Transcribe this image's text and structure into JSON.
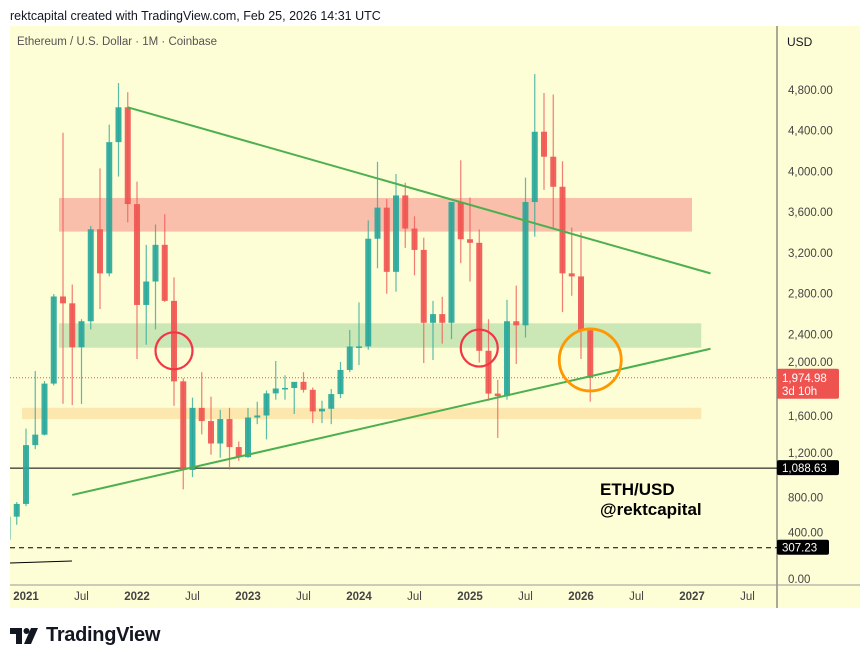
{
  "caption": "rektcapital created with TradingView.com, Feb 25, 2026 14:31 UTC",
  "symbol_line": "Ethereum / U.S. Dollar · 1M · Coinbase",
  "currency": "USD",
  "watermark": {
    "line1": "ETH/USD",
    "line2": "@rektcapital"
  },
  "logo_text": "TradingView",
  "colors": {
    "background": "#fdfdd6",
    "up": "#26a69a",
    "down": "#ef5350",
    "trendline": "#4caf50",
    "resistance_zone": "#f9b4a2",
    "support_zone": "#c3e3b0",
    "orange_zone": "#fbe3a8",
    "orange_circle": "#ff9800",
    "red_circle": "#f23645"
  },
  "chart_data": {
    "type": "candlestick",
    "title": "Ethereum / U.S. Dollar · 1M · Coinbase",
    "ylim": [
      0,
      5000
    ],
    "y_ticks": [
      "0.00",
      "400.00",
      "800.00",
      "1,200.00",
      "1,600.00",
      "2,000.00",
      "2,400.00",
      "2,800.00",
      "3,200.00",
      "3,600.00",
      "4,000.00",
      "4,400.00",
      "4,800.00"
    ],
    "x_ticks": [
      "2021",
      "Jul",
      "2022",
      "Jul",
      "2023",
      "Jul",
      "2024",
      "Jul",
      "2025",
      "Jul",
      "2026",
      "Jul",
      "2027",
      "Jul"
    ],
    "candles": [
      [
        "2020-11",
        386,
        622,
        374,
        612
      ],
      [
        "2020-12",
        612,
        755,
        532,
        737
      ],
      [
        "2021-01",
        737,
        1476,
        715,
        1314
      ],
      [
        "2021-02",
        1314,
        2041,
        1274,
        1417
      ],
      [
        "2021-03",
        1417,
        1943,
        1410,
        1918
      ],
      [
        "2021-04",
        1918,
        2797,
        1900,
        2773
      ],
      [
        "2021-05",
        2773,
        4380,
        1720,
        2706
      ],
      [
        "2021-06",
        2706,
        2890,
        1707,
        2275
      ],
      [
        "2021-07",
        2275,
        2550,
        1718,
        2530
      ],
      [
        "2021-08",
        2530,
        3466,
        2450,
        3433
      ],
      [
        "2021-09",
        3433,
        4030,
        2650,
        3000
      ],
      [
        "2021-10",
        3000,
        4460,
        2970,
        4288
      ],
      [
        "2021-11",
        4288,
        4868,
        3950,
        4630
      ],
      [
        "2021-12",
        4630,
        4778,
        3500,
        3680
      ],
      [
        "2022-01",
        3680,
        3900,
        2160,
        2690
      ],
      [
        "2022-02",
        2690,
        3280,
        2300,
        2920
      ],
      [
        "2022-03",
        2920,
        3480,
        2450,
        3280
      ],
      [
        "2022-04",
        3280,
        3580,
        2720,
        2730
      ],
      [
        "2022-05",
        2730,
        2960,
        1700,
        1940
      ],
      [
        "2022-06",
        1940,
        1970,
        880,
        1070
      ],
      [
        "2022-07",
        1070,
        1780,
        1000,
        1680
      ],
      [
        "2022-08",
        1680,
        2030,
        1420,
        1550
      ],
      [
        "2022-09",
        1550,
        1790,
        1220,
        1330
      ],
      [
        "2022-10",
        1330,
        1660,
        1190,
        1570
      ],
      [
        "2022-11",
        1570,
        1680,
        1075,
        1295
      ],
      [
        "2022-12",
        1295,
        1350,
        1160,
        1196
      ],
      [
        "2023-01",
        1196,
        1680,
        1190,
        1585
      ],
      [
        "2023-02",
        1585,
        1740,
        1520,
        1605
      ],
      [
        "2023-03",
        1605,
        1850,
        1370,
        1822
      ],
      [
        "2023-04",
        1822,
        2140,
        1760,
        1870
      ],
      [
        "2023-05",
        1870,
        2000,
        1760,
        1875
      ],
      [
        "2023-06",
        1875,
        1930,
        1620,
        1935
      ],
      [
        "2023-07",
        1935,
        2030,
        1830,
        1857
      ],
      [
        "2023-08",
        1857,
        1880,
        1530,
        1645
      ],
      [
        "2023-09",
        1645,
        1750,
        1530,
        1671
      ],
      [
        "2023-10",
        1671,
        1865,
        1520,
        1815
      ],
      [
        "2023-11",
        1815,
        2130,
        1775,
        2052
      ],
      [
        "2023-12",
        2052,
        2445,
        2030,
        2282
      ],
      [
        "2024-01",
        2282,
        2715,
        2100,
        2283
      ],
      [
        "2024-02",
        2283,
        3520,
        2250,
        3340
      ],
      [
        "2024-03",
        3340,
        4095,
        3050,
        3645
      ],
      [
        "2024-04",
        3645,
        3730,
        2800,
        3015
      ],
      [
        "2024-05",
        3015,
        3975,
        2820,
        3765
      ],
      [
        "2024-06",
        3765,
        3890,
        3250,
        3440
      ],
      [
        "2024-07",
        3440,
        3560,
        2980,
        3230
      ],
      [
        "2024-08",
        3230,
        3350,
        2120,
        2515
      ],
      [
        "2024-09",
        2515,
        2730,
        2150,
        2600
      ],
      [
        "2024-10",
        2600,
        2770,
        2310,
        2515
      ],
      [
        "2024-11",
        2515,
        3680,
        2355,
        3700
      ],
      [
        "2024-12",
        3700,
        4110,
        3100,
        3335
      ],
      [
        "2025-01",
        3335,
        3745,
        2920,
        3300
      ],
      [
        "2025-02",
        3300,
        3430,
        2125,
        2240
      ],
      [
        "2025-03",
        2240,
        2550,
        1750,
        1820
      ],
      [
        "2025-04",
        1820,
        1955,
        1385,
        1795
      ],
      [
        "2025-05",
        1795,
        2740,
        1760,
        2530
      ],
      [
        "2025-06",
        2530,
        2880,
        2110,
        2490
      ],
      [
        "2025-07",
        2490,
        3940,
        2370,
        3700
      ],
      [
        "2025-08",
        3700,
        4955,
        3360,
        4390
      ],
      [
        "2025-09",
        4390,
        4770,
        3820,
        4145
      ],
      [
        "2025-10",
        4145,
        4755,
        3440,
        3850
      ],
      [
        "2025-11",
        3850,
        4100,
        2620,
        3000
      ],
      [
        "2025-12",
        3000,
        3450,
        2780,
        2970
      ],
      [
        "2026-01",
        2970,
        3400,
        2160,
        2440
      ],
      [
        "2026-02",
        2440,
        2450,
        1740,
        1974.98
      ]
    ],
    "zones": [
      {
        "name": "resistance",
        "from": "2021-05",
        "to": "2027-01",
        "low": 3410,
        "high": 3740
      },
      {
        "name": "support",
        "from": "2021-05",
        "to": "2027-02",
        "low": 2270,
        "high": 2510
      },
      {
        "name": "orange",
        "from": "2021-01",
        "to": "2027-02",
        "low": 1570,
        "high": 1680
      }
    ],
    "trendlines": [
      {
        "name": "descending",
        "from": [
          "2021-12",
          4630
        ],
        "to": [
          "2027-03",
          3000
        ]
      },
      {
        "name": "ascending",
        "from": [
          "2021-06",
          825
        ],
        "to": [
          "2027-03",
          2260
        ]
      }
    ],
    "circles": [
      {
        "name": "red-circle-1",
        "at": [
          "2022-05",
          2240
        ],
        "color": "red"
      },
      {
        "name": "red-circle-2",
        "at": [
          "2025-02",
          2267
        ],
        "color": "red"
      },
      {
        "name": "orange-circle",
        "at": [
          "2026-02",
          2150
        ],
        "color": "orange"
      }
    ],
    "price_lines": [
      {
        "name": "last-price",
        "price": 1974.98,
        "label": "1,974.98",
        "sublabel": "3d 10h",
        "style": "dotted"
      },
      {
        "name": "level-1088",
        "price": 1088.63,
        "label": "1,088.63",
        "style": "solid"
      },
      {
        "name": "level-307",
        "price": 307.23,
        "label": "307.23",
        "style": "dashed"
      }
    ]
  }
}
